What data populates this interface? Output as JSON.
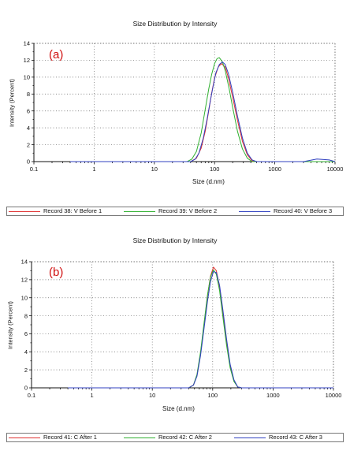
{
  "chart_data": [
    {
      "type": "line",
      "panel_label": "(a)",
      "title": "Size Distribution by Intensity",
      "xlabel": "Size (d.nm)",
      "ylabel": "Intensity (Percent)",
      "xscale": "log",
      "xlim": [
        0.1,
        10000
      ],
      "ylim": [
        0,
        14
      ],
      "xticks": [
        0.1,
        1,
        10,
        100,
        1000,
        10000
      ],
      "xtick_labels": [
        "0.1",
        "1",
        "10",
        "100",
        "1000",
        "10000"
      ],
      "yticks": [
        0,
        2,
        4,
        6,
        8,
        10,
        12,
        14
      ],
      "grid": true,
      "legend_position": "bottom",
      "series": [
        {
          "name": "Record 38: V Before 1",
          "color": "#e03030",
          "x": [
            0.4,
            40,
            50,
            60,
            70,
            80,
            90,
            100,
            115,
            130,
            150,
            170,
            200,
            240,
            290,
            350,
            420,
            500,
            10000
          ],
          "y": [
            0,
            0,
            0.4,
            1.6,
            3.6,
            6.0,
            8.2,
            9.9,
            11.2,
            11.6,
            11.2,
            9.9,
            7.6,
            4.9,
            2.4,
            0.8,
            0.1,
            0,
            0
          ]
        },
        {
          "name": "Record 39: V Before 2",
          "color": "#30b030",
          "x": [
            0.4,
            35,
            42,
            50,
            60,
            70,
            80,
            90,
            100,
            110,
            120,
            135,
            150,
            175,
            200,
            240,
            290,
            350,
            420,
            1000,
            10000
          ],
          "y": [
            0,
            0,
            0.3,
            1.2,
            3.4,
            6.2,
            8.6,
            10.4,
            11.6,
            12.2,
            12.3,
            11.8,
            10.8,
            8.6,
            6.4,
            3.6,
            1.5,
            0.4,
            0,
            0,
            0
          ]
        },
        {
          "name": "Record 40: V Before 3",
          "color": "#3040c0",
          "x": [
            0.4,
            40,
            48,
            55,
            65,
            75,
            85,
            95,
            105,
            120,
            135,
            150,
            170,
            200,
            240,
            290,
            350,
            420,
            500,
            3000,
            5000,
            8000,
            10000
          ],
          "y": [
            0,
            0,
            0.3,
            1.0,
            2.8,
            5.0,
            7.2,
            9.0,
            10.5,
            11.5,
            11.8,
            11.5,
            10.4,
            8.2,
            5.4,
            2.8,
            1.0,
            0.2,
            0,
            0,
            0.3,
            0.2,
            0
          ]
        }
      ]
    },
    {
      "type": "line",
      "panel_label": "(b)",
      "title": "Size Distribution by Intensity",
      "xlabel": "Size (d.nm)",
      "ylabel": "Intensity (Percent)",
      "xscale": "log",
      "xlim": [
        0.1,
        10000
      ],
      "ylim": [
        0,
        14
      ],
      "xticks": [
        0.1,
        1,
        10,
        100,
        1000,
        10000
      ],
      "xtick_labels": [
        "0.1",
        "1",
        "10",
        "100",
        "1000",
        "10000"
      ],
      "yticks": [
        0,
        2,
        4,
        6,
        8,
        10,
        12,
        14
      ],
      "grid": true,
      "legend_position": "bottom",
      "series": [
        {
          "name": "Record 41: C After 1",
          "color": "#e03030",
          "x": [
            0.4,
            40,
            48,
            55,
            63,
            72,
            82,
            92,
            103,
            115,
            130,
            148,
            170,
            195,
            225,
            260,
            300,
            10000
          ],
          "y": [
            0,
            0,
            0.3,
            1.4,
            3.8,
            7.0,
            10.2,
            12.4,
            13.4,
            13.0,
            11.2,
            8.2,
            5.0,
            2.4,
            0.8,
            0.1,
            0,
            0
          ]
        },
        {
          "name": "Record 42: C After 2",
          "color": "#30b030",
          "x": [
            0.4,
            40,
            48,
            55,
            63,
            72,
            82,
            92,
            103,
            115,
            130,
            148,
            170,
            195,
            225,
            260,
            300,
            10000
          ],
          "y": [
            0,
            0,
            0.3,
            1.5,
            4.0,
            7.2,
            10.3,
            12.3,
            13.1,
            12.6,
            10.8,
            7.8,
            4.7,
            2.2,
            0.7,
            0.1,
            0,
            0
          ]
        },
        {
          "name": "Record 43: C After 3",
          "color": "#3040c0",
          "x": [
            0.4,
            40,
            48,
            55,
            63,
            72,
            82,
            92,
            103,
            115,
            130,
            148,
            170,
            195,
            225,
            260,
            300,
            10000
          ],
          "y": [
            0,
            0,
            0.3,
            1.3,
            3.6,
            6.6,
            9.6,
            11.8,
            12.9,
            12.8,
            11.4,
            8.6,
            5.4,
            2.6,
            0.9,
            0.1,
            0,
            0
          ]
        }
      ]
    }
  ]
}
